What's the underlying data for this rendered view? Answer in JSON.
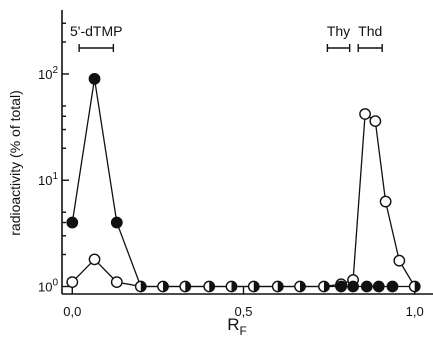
{
  "chart_data": {
    "type": "scatter",
    "title": "",
    "xlabel": "R",
    "xlabel_sub": "F",
    "ylabel": "radioactivity (% of total)",
    "x_scale": "linear",
    "y_scale": "log",
    "xlim": [
      -0.03,
      1.03
    ],
    "ylim": [
      0.85,
      400
    ],
    "x_ticks": [
      {
        "value": 0.0,
        "label": "0,0"
      },
      {
        "value": 0.5,
        "label": "0,5"
      },
      {
        "value": 1.0,
        "label": "1,0"
      }
    ],
    "y_ticks": [
      {
        "value": 1,
        "base": "10",
        "exp": "0"
      },
      {
        "value": 10,
        "base": "10",
        "exp": "1"
      },
      {
        "value": 100,
        "base": "10",
        "exp": "2"
      }
    ],
    "grid": false,
    "series": [
      {
        "marker": "filled-circle",
        "points": [
          {
            "x": 0.0,
            "y": 4.0
          },
          {
            "x": 0.065,
            "y": 90
          },
          {
            "x": 0.13,
            "y": 4.0
          },
          {
            "x": 0.2,
            "y": 1.0
          },
          {
            "x": 0.265,
            "y": 1.0
          },
          {
            "x": 0.33,
            "y": 1.0
          },
          {
            "x": 0.4,
            "y": 1.0
          },
          {
            "x": 0.465,
            "y": 1.0
          },
          {
            "x": 0.53,
            "y": 1.0
          },
          {
            "x": 0.6,
            "y": 1.0
          },
          {
            "x": 0.665,
            "y": 1.0
          },
          {
            "x": 0.735,
            "y": 1.0
          },
          {
            "x": 0.785,
            "y": 1.0
          },
          {
            "x": 0.82,
            "y": 1.0
          },
          {
            "x": 0.86,
            "y": 1.0
          },
          {
            "x": 0.895,
            "y": 1.0
          },
          {
            "x": 0.935,
            "y": 1.0
          },
          {
            "x": 1.0,
            "y": 1.0
          }
        ]
      },
      {
        "marker": "open-circle",
        "points": [
          {
            "x": 0.0,
            "y": 1.1
          },
          {
            "x": 0.065,
            "y": 1.8
          },
          {
            "x": 0.13,
            "y": 1.1
          },
          {
            "x": 0.2,
            "y": 1.0
          },
          {
            "x": 0.265,
            "y": 1.0
          },
          {
            "x": 0.33,
            "y": 1.0
          },
          {
            "x": 0.4,
            "y": 1.0
          },
          {
            "x": 0.465,
            "y": 1.0
          },
          {
            "x": 0.53,
            "y": 1.0
          },
          {
            "x": 0.6,
            "y": 1.0
          },
          {
            "x": 0.665,
            "y": 1.0
          },
          {
            "x": 0.735,
            "y": 1.0
          },
          {
            "x": 0.785,
            "y": 1.05
          },
          {
            "x": 0.82,
            "y": 1.15
          },
          {
            "x": 0.855,
            "y": 42
          },
          {
            "x": 0.885,
            "y": 36
          },
          {
            "x": 0.915,
            "y": 6.3
          },
          {
            "x": 0.955,
            "y": 1.75
          },
          {
            "x": 1.0,
            "y": 1.0
          }
        ]
      }
    ],
    "markers": [
      {
        "label": "5'-dTMP",
        "x_start": 0.02,
        "x_end": 0.12
      },
      {
        "label": "Thy",
        "x_start": 0.745,
        "x_end": 0.81
      },
      {
        "label": "Thd",
        "x_start": 0.835,
        "x_end": 0.905
      }
    ]
  }
}
